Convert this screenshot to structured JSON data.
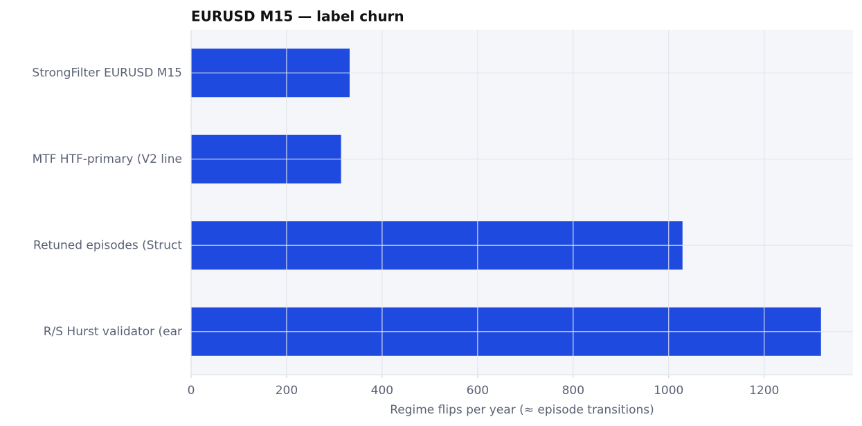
{
  "chart_data": {
    "type": "bar",
    "orientation": "horizontal",
    "title": "EURUSD M15 — label churn",
    "xlabel": "Regime flips per year (≈ episode transitions)",
    "categories": [
      "StrongFilter EURUSD M15",
      "MTF HTF-primary (V2 line",
      "Retuned episodes (Struct",
      "R/S Hurst validator (ear"
    ],
    "values": [
      332,
      314,
      1029,
      1319
    ],
    "color": "#1f4ae0",
    "xlim": [
      0,
      1386
    ],
    "xticks": [
      0,
      200,
      400,
      600,
      800,
      1000,
      1200
    ],
    "grid": true
  }
}
